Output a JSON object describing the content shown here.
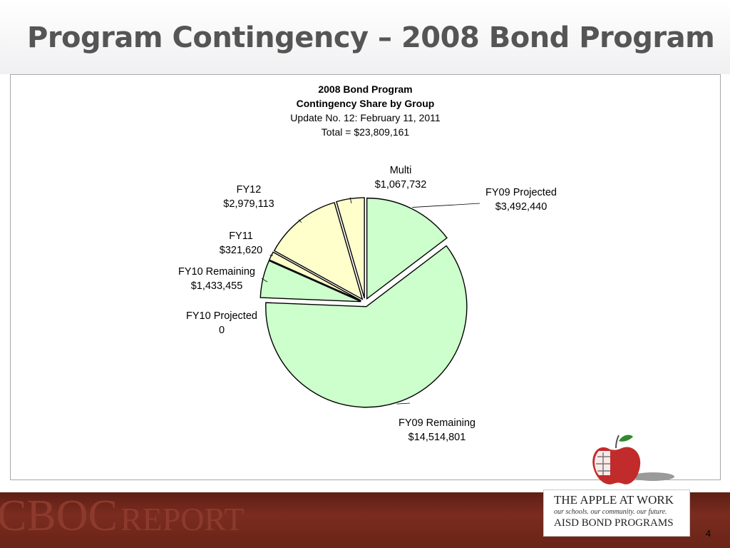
{
  "slide": {
    "title": "Program Contingency – 2008 Bond Program",
    "page_number": "4"
  },
  "footer": {
    "report_word1": "CBOC",
    "report_word2": "REPORT",
    "badge_line1": "THE APPLE AT WORK",
    "badge_line2": "our schools. our community. our future.",
    "badge_line3": "AISD BOND PROGRAMS"
  },
  "chart_data": {
    "type": "pie",
    "title_lines": [
      "2008 Bond Program",
      "Contingency Share by Group",
      "Update No. 12: February 11, 2011",
      "Total = $23,809,161"
    ],
    "slices": [
      {
        "name": "FY09 Projected",
        "value": 3492440,
        "value_label": "$3,492,440",
        "color": "#ccffcc"
      },
      {
        "name": "FY09 Remaining",
        "value": 14514801,
        "value_label": "$14,514,801",
        "color": "#ccffcc"
      },
      {
        "name": "FY10 Projected",
        "value": 0,
        "value_label": "0",
        "color": "#ccffcc"
      },
      {
        "name": "FY10 Remaining",
        "value": 1433455,
        "value_label": "$1,433,455",
        "color": "#ccffcc"
      },
      {
        "name": "FY11",
        "value": 321620,
        "value_label": "$321,620",
        "color": "#ffffcc"
      },
      {
        "name": "FY12",
        "value": 2979113,
        "value_label": "$2,979,113",
        "color": "#ffffcc"
      },
      {
        "name": "Multi",
        "value": 1067732,
        "value_label": "$1,067,732",
        "color": "#ffffcc"
      }
    ]
  }
}
